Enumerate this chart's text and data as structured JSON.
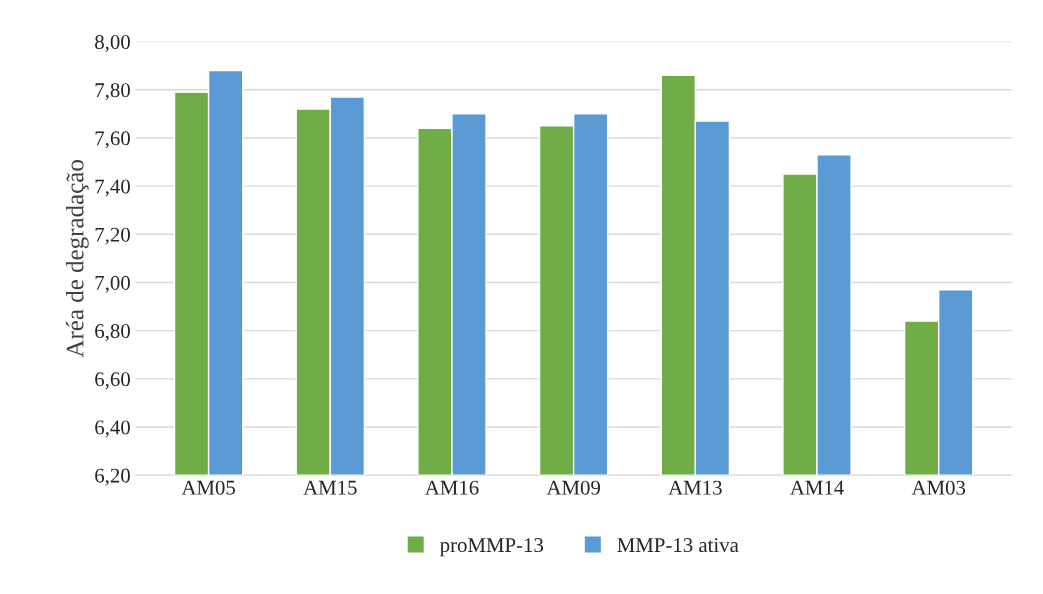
{
  "chart_data": {
    "type": "bar",
    "ylabel": "Aréa de degradação",
    "categories": [
      "AM05",
      "AM15",
      "AM16",
      "AM09",
      "AM13",
      "AM14",
      "AM03"
    ],
    "series": [
      {
        "name": "proMMP-13",
        "color": "#70ad47",
        "values": [
          7.79,
          7.72,
          7.64,
          7.65,
          7.86,
          7.45,
          6.84
        ]
      },
      {
        "name": "MMP-13 ativa",
        "color": "#5b9bd5",
        "values": [
          7.88,
          7.77,
          7.7,
          7.7,
          7.67,
          7.53,
          6.97
        ]
      }
    ],
    "ylim": [
      6.2,
      8.0
    ],
    "yticks": [
      {
        "value": 6.2,
        "label": "6,20"
      },
      {
        "value": 6.4,
        "label": "6,40"
      },
      {
        "value": 6.6,
        "label": "6,60"
      },
      {
        "value": 6.8,
        "label": "6,80"
      },
      {
        "value": 7.0,
        "label": "7,00"
      },
      {
        "value": 7.2,
        "label": "7,20"
      },
      {
        "value": 7.4,
        "label": "7,40"
      },
      {
        "value": 7.6,
        "label": "7,60"
      },
      {
        "value": 7.8,
        "label": "7,80"
      },
      {
        "value": 8.0,
        "label": "8,00"
      }
    ],
    "grid": "y",
    "legend": "bottom"
  }
}
